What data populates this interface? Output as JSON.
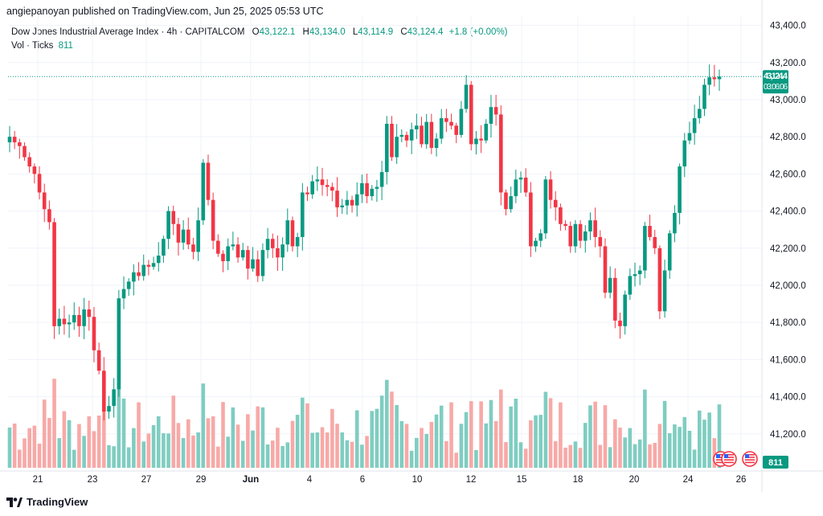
{
  "header": {
    "published": "angiepanoyan published on TradingView.com, Jun 25, 2025 05:53 UTC"
  },
  "legend": {
    "symbol": "Dow Jones Industrial Average Index · 4h · CAPITALCOM",
    "open_label": "O",
    "open": "43,122.1",
    "high_label": "H",
    "high": "43,134.0",
    "low_label": "L",
    "low": "43,114.9",
    "close_label": "C",
    "close": "43,124.4",
    "change": "+1.8 (+0.00%)",
    "volume_label": "Vol · Ticks",
    "volume_value": "811"
  },
  "price_tag": {
    "price": "43,124.4",
    "countdown": "03:06:06"
  },
  "volume_tag": "811",
  "footer": {
    "brand": "TradingView"
  },
  "colors": {
    "up": "#089981",
    "down": "#f23645",
    "up_volume": "#7fcdc1",
    "down_volume": "#f7a9a7",
    "grid": "#f0f3fa"
  },
  "chart_data": {
    "type": "candlestick",
    "interval": "4h",
    "y_axis_ticks": [
      "43,400.0",
      "43,200.0",
      "43,000.0",
      "42,800.0",
      "42,600.0",
      "42,400.0",
      "42,200.0",
      "42,000.0",
      "41,800.0",
      "41,600.0",
      "41,400.0",
      "41,200.0"
    ],
    "ylim": [
      41000,
      43450
    ],
    "x_axis_ticks": [
      "21",
      "23",
      "27",
      "29",
      "Jun",
      "4",
      "6",
      "10",
      "12",
      "15",
      "18",
      "20",
      "24",
      "26"
    ],
    "last_price": 43124.4,
    "closes": [
      42800,
      42770,
      42750,
      42690,
      42640,
      42600,
      42500,
      42410,
      42340,
      41780,
      41820,
      41790,
      41800,
      41840,
      41780,
      41870,
      41830,
      41650,
      41540,
      41320,
      41350,
      41440,
      41930,
      41980,
      42020,
      42070,
      42050,
      42110,
      42100,
      42120,
      42160,
      42250,
      42400,
      42330,
      42230,
      42300,
      42220,
      42180,
      42350,
      42660,
      42460,
      42240,
      42170,
      42130,
      42210,
      42220,
      42150,
      42190,
      42090,
      42140,
      42050,
      42190,
      42250,
      42200,
      42150,
      42220,
      42350,
      42210,
      42260,
      42500,
      42490,
      42560,
      42570,
      42540,
      42530,
      42510,
      42420,
      42430,
      42460,
      42430,
      42490,
      42550,
      42480,
      42520,
      42530,
      42610,
      42870,
      42690,
      42800,
      42810,
      42780,
      42840,
      42860,
      42760,
      42880,
      42740,
      42790,
      42900,
      42880,
      42860,
      42810,
      42950,
      43080,
      42760,
      42790,
      42780,
      42870,
      42960,
      42920,
      42500,
      42410,
      42480,
      42570,
      42580,
      42500,
      42210,
      42240,
      42280,
      42570,
      42460,
      42420,
      42330,
      42320,
      42210,
      42330,
      42240,
      42290,
      42350,
      42260,
      42210,
      41960,
      42040,
      41810,
      41780,
      41950,
      42050,
      42060,
      42080,
      42320,
      42260,
      42200,
      41860,
      42080,
      42280,
      42390,
      42640,
      42780,
      42820,
      42900,
      42950,
      43080,
      43120,
      43110,
      43124
    ]
  }
}
